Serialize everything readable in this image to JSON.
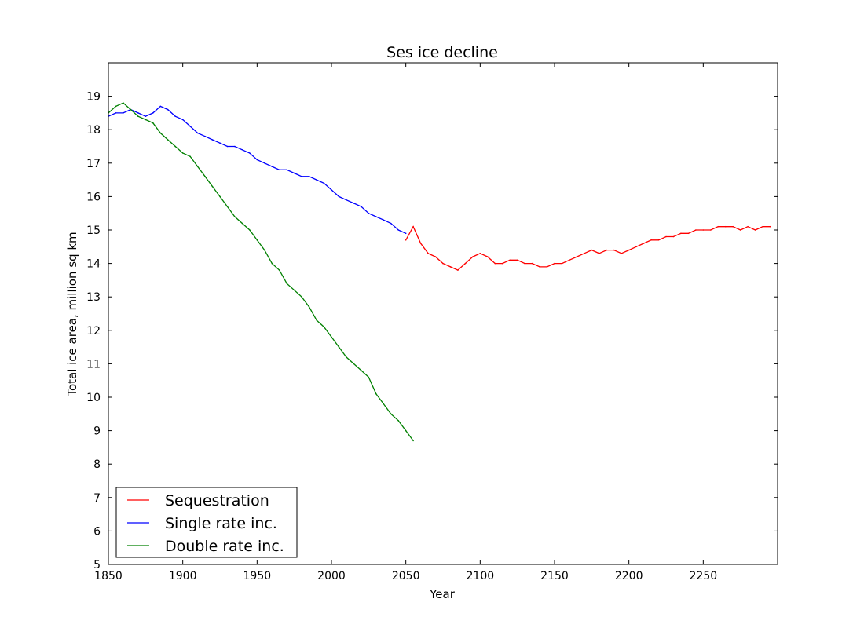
{
  "chart_data": {
    "type": "line",
    "title": "Ses ice decline",
    "xlabel": "Year",
    "ylabel": "Total ice area, million sq km",
    "xlim": [
      1850,
      2300
    ],
    "ylim": [
      5,
      20
    ],
    "x_ticks": [
      1850,
      1900,
      1950,
      2000,
      2050,
      2100,
      2150,
      2200,
      2250
    ],
    "y_ticks": [
      5,
      6,
      7,
      8,
      9,
      10,
      11,
      12,
      13,
      14,
      15,
      16,
      17,
      18,
      19
    ],
    "grid": false,
    "legend_position": "bottom-left",
    "series": [
      {
        "name": "Sequestration",
        "color": "#ff0000",
        "x_start": 2050,
        "x_step": 5,
        "values": [
          14.7,
          15.1,
          14.6,
          14.3,
          14.2,
          14.0,
          13.9,
          13.8,
          14.0,
          14.2,
          14.3,
          14.2,
          14.0,
          14.0,
          14.1,
          14.1,
          14.0,
          14.0,
          13.9,
          13.9,
          14.0,
          14.0,
          14.1,
          14.2,
          14.3,
          14.4,
          14.3,
          14.4,
          14.4,
          14.3,
          14.4,
          14.5,
          14.6,
          14.7,
          14.7,
          14.8,
          14.8,
          14.9,
          14.9,
          15.0,
          15.0,
          15.0,
          15.1,
          15.1,
          15.1,
          15.0,
          15.1,
          15.0,
          15.1,
          15.1
        ]
      },
      {
        "name": "Single rate inc.",
        "color": "#0000ff",
        "x_start": 1850,
        "x_step": 5,
        "values": [
          18.4,
          18.5,
          18.5,
          18.6,
          18.5,
          18.4,
          18.5,
          18.7,
          18.6,
          18.4,
          18.3,
          18.1,
          17.9,
          17.8,
          17.7,
          17.6,
          17.5,
          17.5,
          17.4,
          17.3,
          17.1,
          17.0,
          16.9,
          16.8,
          16.8,
          16.7,
          16.6,
          16.6,
          16.5,
          16.4,
          16.2,
          16.0,
          15.9,
          15.8,
          15.7,
          15.5,
          15.4,
          15.3,
          15.2,
          15.0,
          14.9
        ]
      },
      {
        "name": "Double rate inc.",
        "color": "#008000",
        "x_start": 1850,
        "x_step": 5,
        "values": [
          18.5,
          18.7,
          18.8,
          18.6,
          18.4,
          18.3,
          18.2,
          17.9,
          17.7,
          17.5,
          17.3,
          17.2,
          16.9,
          16.6,
          16.3,
          16.0,
          15.7,
          15.4,
          15.2,
          15.0,
          14.7,
          14.4,
          14.0,
          13.8,
          13.4,
          13.2,
          13.0,
          12.7,
          12.3,
          12.1,
          11.8,
          11.5,
          11.2,
          11.0,
          10.8,
          10.6,
          10.1,
          9.8,
          9.5,
          9.3,
          9.0,
          8.7
        ]
      }
    ]
  }
}
